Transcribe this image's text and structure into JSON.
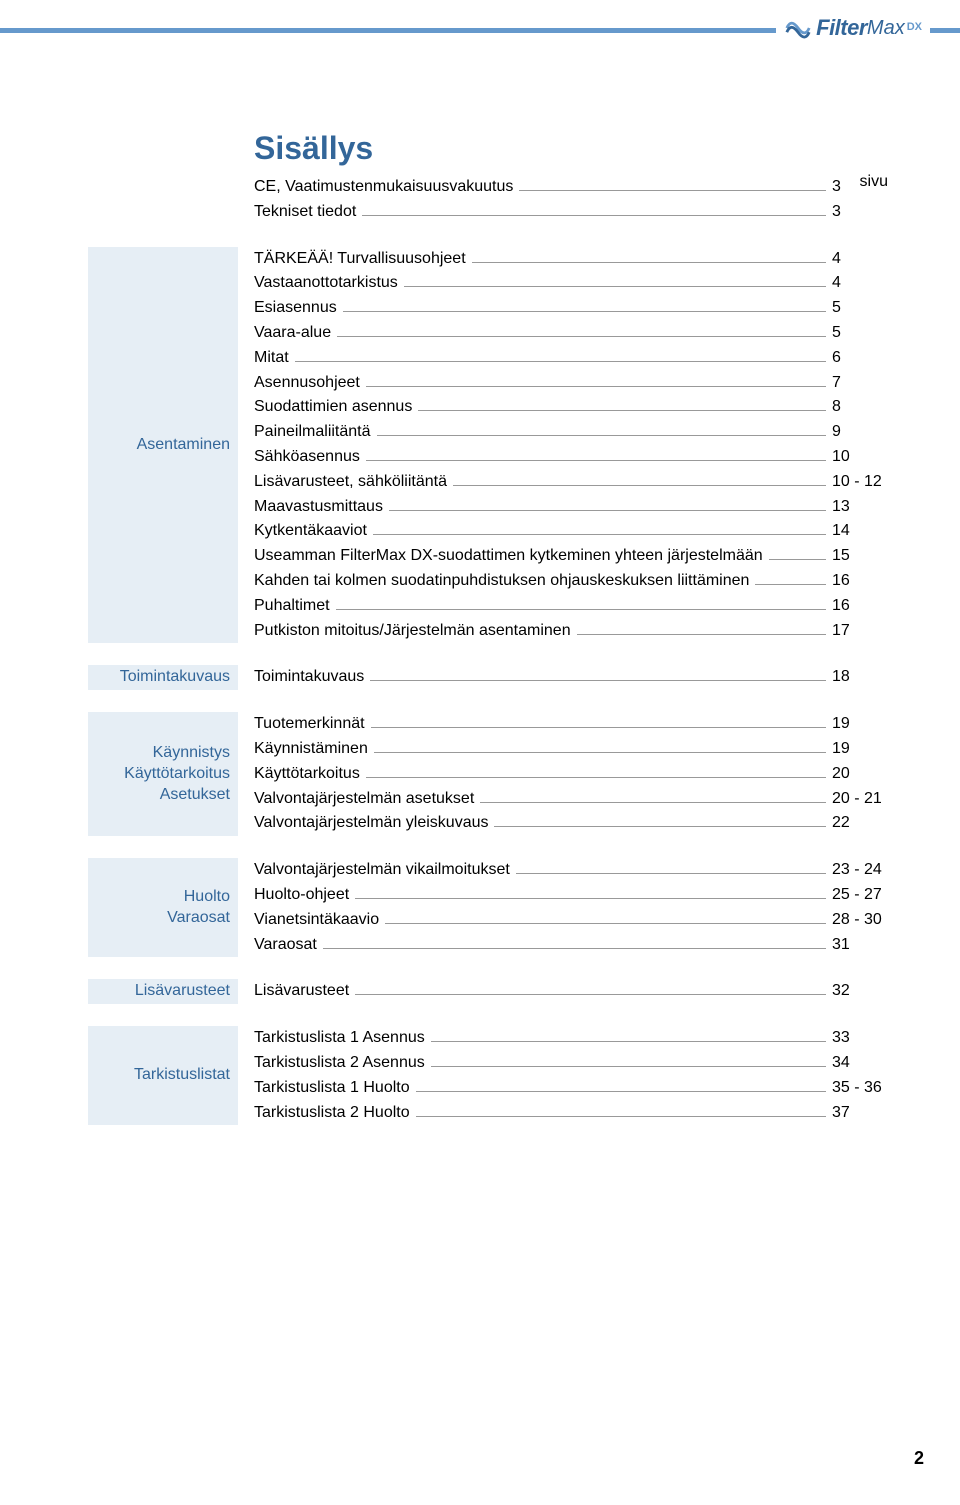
{
  "logo": {
    "brand_bold": "Filter",
    "brand_light": "Max",
    "suffix": "DX"
  },
  "title": "Sisällys",
  "page_col_header": "sivu",
  "page_number": "2",
  "colors": {
    "accent": "#336699",
    "header_bar": "#6699cc",
    "side_bg": "#e6eef5",
    "leader": "#999999",
    "text": "#000000",
    "background": "#ffffff"
  },
  "sections": [
    {
      "side_labels": [],
      "lines": [
        {
          "label": "CE, Vaatimustenmukaisuusvakuutus",
          "page": "3"
        },
        {
          "label": "Tekniset tiedot",
          "page": "3"
        }
      ]
    },
    {
      "side_labels": [
        "Asentaminen"
      ],
      "lines": [
        {
          "label": "TÄRKEÄÄ! Turvallisuusohjeet",
          "page": "4"
        },
        {
          "label": "Vastaanottotarkistus",
          "page": "4"
        },
        {
          "label": "Esiasennus",
          "page": "5"
        },
        {
          "label": "Vaara-alue",
          "page": "5"
        },
        {
          "label": "Mitat",
          "page": "6"
        },
        {
          "label": "Asennusohjeet",
          "page": "7"
        },
        {
          "label": "Suodattimien asennus",
          "page": "8"
        },
        {
          "label": "Paineilmaliitäntä",
          "page": "9"
        },
        {
          "label": "Sähköasennus",
          "page": "10"
        },
        {
          "label": "Lisävarusteet, sähköliitäntä",
          "page": "10 - 12"
        },
        {
          "label": "Maavastusmittaus",
          "page": "13"
        },
        {
          "label": "Kytkentäkaaviot",
          "page": "14"
        },
        {
          "label": "Useamman FilterMax DX-suodattimen kytkeminen yhteen järjestelmään",
          "page": "15"
        },
        {
          "label": "Kahden tai kolmen suodatinpuhdistuksen ohjauskeskuksen liittäminen",
          "page": "16"
        },
        {
          "label": "Puhaltimet",
          "page": "16"
        },
        {
          "label": "Putkiston mitoitus/Järjestelmän asentaminen",
          "page": "17"
        }
      ]
    },
    {
      "side_labels": [
        "Toimintakuvaus"
      ],
      "lines": [
        {
          "label": "Toimintakuvaus",
          "page": "18"
        }
      ]
    },
    {
      "side_labels": [
        "Käynnistys",
        "Käyttötarkoitus",
        "Asetukset"
      ],
      "lines": [
        {
          "label": "Tuotemerkinnät",
          "page": "19"
        },
        {
          "label": "Käynnistäminen",
          "page": "19"
        },
        {
          "label": "Käyttötarkoitus",
          "page": "20"
        },
        {
          "label": "Valvontajärjestelmän asetukset",
          "page": "20 - 21"
        },
        {
          "label": "Valvontajärjestelmän yleiskuvaus",
          "page": "22"
        }
      ]
    },
    {
      "side_labels": [
        "Huolto",
        "Varaosat"
      ],
      "lines": [
        {
          "label": "Valvontajärjestelmän vikailmoitukset",
          "page": "23 - 24"
        },
        {
          "label": "Huolto-ohjeet",
          "page": "25 - 27"
        },
        {
          "label": "Vianetsintäkaavio",
          "page": "28 - 30"
        },
        {
          "label": "Varaosat",
          "page": "31"
        }
      ]
    },
    {
      "side_labels": [
        "Lisävarusteet"
      ],
      "lines": [
        {
          "label": "Lisävarusteet",
          "page": "32"
        }
      ]
    },
    {
      "side_labels": [
        "Tarkistuslistat"
      ],
      "lines": [
        {
          "label": "Tarkistuslista 1 Asennus",
          "page": "33"
        },
        {
          "label": "Tarkistuslista 2 Asennus",
          "page": "34"
        },
        {
          "label": "Tarkistuslista 1 Huolto",
          "page": "35 - 36"
        },
        {
          "label": "Tarkistuslista 2 Huolto",
          "page": "37"
        }
      ]
    }
  ]
}
